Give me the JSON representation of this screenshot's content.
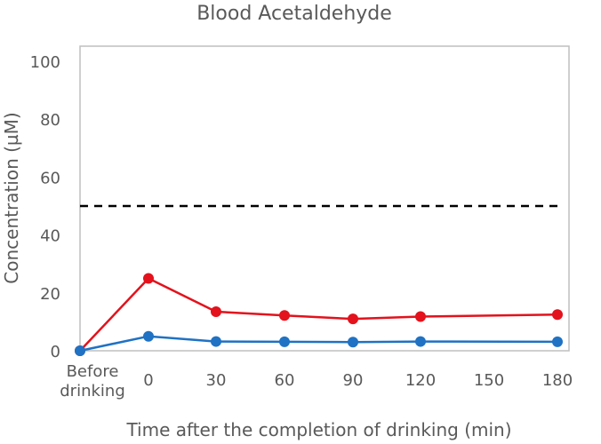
{
  "chart_data": {
    "type": "line",
    "title": "Blood Acetaldehyde",
    "xlabel": "Time after the completion of drinking (min)",
    "ylabel": "Concentration (µM)",
    "x_ticks": [
      "Before drinking",
      "0",
      "30",
      "60",
      "90",
      "120",
      "150",
      "180"
    ],
    "y_ticks": [
      "0",
      "20",
      "40",
      "60",
      "80",
      "100"
    ],
    "ylim": [
      0,
      100
    ],
    "grid": false,
    "reference_line": {
      "y": 50,
      "style": "dashed",
      "color": "#000000"
    },
    "series": [
      {
        "color": "#e3121c",
        "points": [
          {
            "x": "Before drinking",
            "y": 0
          },
          {
            "x": "0",
            "y": 25
          },
          {
            "x": "30",
            "y": 13.5
          },
          {
            "x": "60",
            "y": 12.2
          },
          {
            "x": "90",
            "y": 11
          },
          {
            "x": "120",
            "y": 11.8
          },
          {
            "x": "180",
            "y": 12.5
          }
        ]
      },
      {
        "color": "#1f72c4",
        "points": [
          {
            "x": "Before drinking",
            "y": 0
          },
          {
            "x": "0",
            "y": 5
          },
          {
            "x": "30",
            "y": 3.2
          },
          {
            "x": "60",
            "y": 3.1
          },
          {
            "x": "90",
            "y": 3.0
          },
          {
            "x": "120",
            "y": 3.2
          },
          {
            "x": "180",
            "y": 3.1
          }
        ]
      }
    ]
  }
}
